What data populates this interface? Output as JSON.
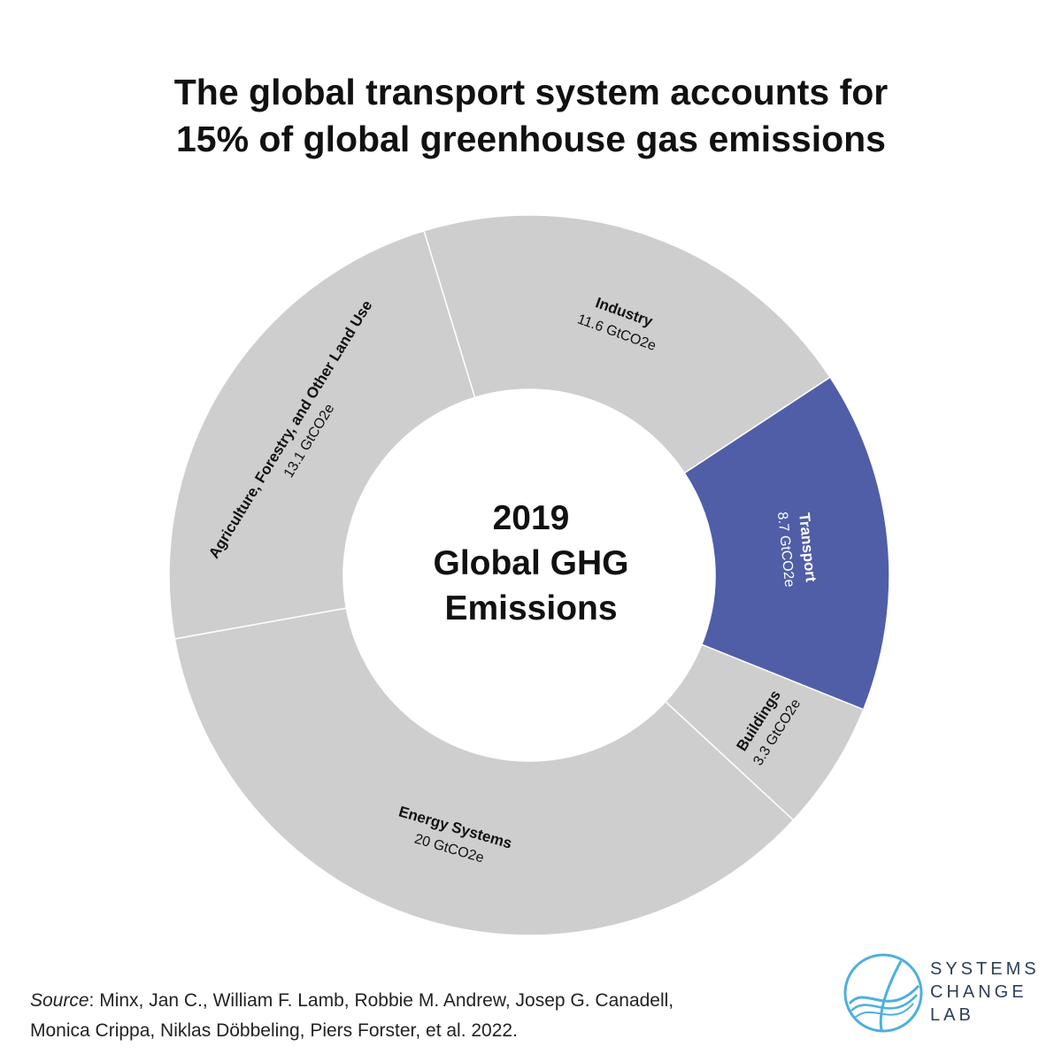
{
  "chart_data": {
    "type": "donut",
    "title": [
      "The global transport system accounts for",
      "15% of global greenhouse gas emissions"
    ],
    "center_label": [
      "2019",
      "Global GHG",
      "Emissions"
    ],
    "unit": "GtCO2e",
    "segments": [
      {
        "name": "Industry",
        "value": 11.6,
        "value_label": "11.6 GtCO2e",
        "color": "#cecece",
        "highlight": false
      },
      {
        "name": "Transport",
        "value": 8.7,
        "value_label": "8.7 GtCO2e",
        "color": "#505ea8",
        "highlight": true
      },
      {
        "name": "Buildings",
        "value": 3.3,
        "value_label": "3.3 GtCO2e",
        "color": "#cecece",
        "highlight": false
      },
      {
        "name": "Energy Systems",
        "value": 20,
        "value_label": "20 GtCO2e",
        "color": "#cecece",
        "highlight": false
      },
      {
        "name": "Agriculture, Forestry, and Other Land Use",
        "value": 13.1,
        "value_label": "13.1 GtCO2e",
        "color": "#cecece",
        "highlight": false
      }
    ]
  },
  "source": {
    "label": "Source",
    "text": ": Minx, Jan C., William F. Lamb, Robbie M. Andrew, Josep G. Canadell,",
    "text2": "Monica Crippa, Niklas Döbbeling, Piers Forster, et al. 2022."
  },
  "logo": {
    "lines": [
      "SYSTEMS",
      "CHANGE",
      "LAB"
    ],
    "color": "#4db0dd"
  }
}
